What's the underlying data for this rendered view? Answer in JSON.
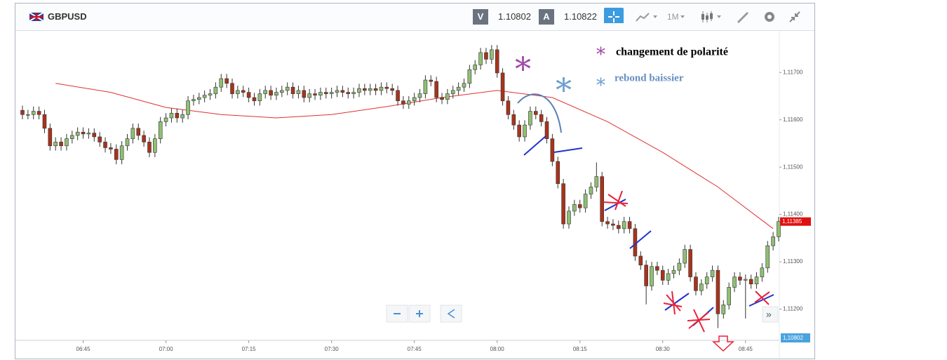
{
  "toolbar": {
    "symbol": "GBPUSD",
    "sell_label": "V",
    "sell_price": 1.10802,
    "buy_label": "A",
    "buy_price": 1.10822,
    "timeframe": "1M"
  },
  "legend": {
    "polarity": "changement de polarité",
    "rebound": "rebond baissier"
  },
  "bid_marker_label": "1,10802",
  "chart_data": {
    "type": "candlestick",
    "xlim": [
      "06:34",
      "08:51"
    ],
    "xticks": [
      "06:45",
      "07:00",
      "07:15",
      "07:30",
      "07:45",
      "08:00",
      "08:15",
      "08:30",
      "08:45"
    ],
    "ylim": [
      1.11134,
      1.11776
    ],
    "yticks": [
      {
        "value": 1.112,
        "label": "1,11200"
      },
      {
        "value": 1.113,
        "label": "1,11300"
      },
      {
        "value": 1.114,
        "label": "1,11400"
      },
      {
        "value": 1.115,
        "label": "1,11500"
      },
      {
        "value": 1.116,
        "label": "1,11600"
      },
      {
        "value": 1.117,
        "label": "1,11700"
      }
    ],
    "up_color": "#8fbf74",
    "down_color": "#a8331c",
    "price_marker": {
      "value": 1.11385,
      "label": "1,11385"
    },
    "x": [
      "06:34",
      "06:35",
      "06:36",
      "06:37",
      "06:38",
      "06:39",
      "06:40",
      "06:41",
      "06:42",
      "06:43",
      "06:44",
      "06:45",
      "06:46",
      "06:47",
      "06:48",
      "06:49",
      "06:50",
      "06:51",
      "06:52",
      "06:53",
      "06:54",
      "06:55",
      "06:56",
      "06:57",
      "06:58",
      "06:59",
      "07:00",
      "07:01",
      "07:02",
      "07:03",
      "07:04",
      "07:05",
      "07:06",
      "07:07",
      "07:08",
      "07:09",
      "07:10",
      "07:11",
      "07:12",
      "07:13",
      "07:14",
      "07:15",
      "07:16",
      "07:17",
      "07:18",
      "07:19",
      "07:20",
      "07:21",
      "07:22",
      "07:23",
      "07:24",
      "07:25",
      "07:26",
      "07:27",
      "07:28",
      "07:29",
      "07:30",
      "07:31",
      "07:32",
      "07:33",
      "07:34",
      "07:35",
      "07:36",
      "07:37",
      "07:38",
      "07:39",
      "07:40",
      "07:41",
      "07:42",
      "07:43",
      "07:44",
      "07:45",
      "07:46",
      "07:47",
      "07:48",
      "07:49",
      "07:50",
      "07:51",
      "07:52",
      "07:53",
      "07:54",
      "07:55",
      "07:56",
      "07:57",
      "07:58",
      "07:59",
      "08:00",
      "08:01",
      "08:02",
      "08:03",
      "08:04",
      "08:05",
      "08:06",
      "08:07",
      "08:08",
      "08:09",
      "08:10",
      "08:11",
      "08:12",
      "08:13",
      "08:14",
      "08:15",
      "08:16",
      "08:17",
      "08:18",
      "08:19",
      "08:20",
      "08:21",
      "08:22",
      "08:23",
      "08:24",
      "08:25",
      "08:26",
      "08:27",
      "08:28",
      "08:29",
      "08:30",
      "08:31",
      "08:32",
      "08:33",
      "08:34",
      "08:35",
      "08:36",
      "08:37",
      "08:38",
      "08:39",
      "08:40",
      "08:41",
      "08:42",
      "08:43",
      "08:44",
      "08:45",
      "08:46",
      "08:47",
      "08:48",
      "08:49",
      "08:50",
      "08:51"
    ],
    "open": [
      1.1162,
      1.11611,
      1.11611,
      1.11618,
      1.11611,
      1.11582,
      1.11545,
      1.11553,
      1.11545,
      1.1156,
      1.11567,
      1.11574,
      1.1157,
      1.11572,
      1.11564,
      1.11553,
      1.11541,
      1.11538,
      1.11516,
      1.11545,
      1.1156,
      1.11582,
      1.11567,
      1.11553,
      1.11531,
      1.1156,
      1.11596,
      1.11604,
      1.11614,
      1.11604,
      1.11611,
      1.1164,
      1.11643,
      1.11647,
      1.11652,
      1.11655,
      1.11669,
      1.11687,
      1.11677,
      1.11655,
      1.11662,
      1.11658,
      1.11647,
      1.1164,
      1.11655,
      1.11662,
      1.11652,
      1.11658,
      1.11662,
      1.11669,
      1.11655,
      1.11662,
      1.11647,
      1.11655,
      1.11652,
      1.11658,
      1.11655,
      1.11658,
      1.11662,
      1.11658,
      1.11655,
      1.11658,
      1.11666,
      1.11662,
      1.11666,
      1.11662,
      1.11669,
      1.11666,
      1.11662,
      1.1164,
      1.11633,
      1.1164,
      1.11647,
      1.11655,
      1.11684,
      1.11681,
      1.11647,
      1.11643,
      1.11655,
      1.11662,
      1.11669,
      1.11677,
      1.11706,
      1.11716,
      1.11742,
      1.11728,
      1.11748,
      1.11699,
      1.1164,
      1.11611,
      1.11589,
      1.11564,
      1.11589,
      1.11618,
      1.11611,
      1.11596,
      1.1156,
      1.11512,
      1.11465,
      1.1138,
      1.11407,
      1.11421,
      1.11414,
      1.11443,
      1.11458,
      1.1148,
      1.11385,
      1.1138,
      1.11377,
      1.1137,
      1.11385,
      1.1137,
      1.11312,
      1.11293,
      1.11249,
      1.1129,
      1.11282,
      1.11261,
      1.11275,
      1.11282,
      1.11297,
      1.11326,
      1.11268,
      1.11239,
      1.11253,
      1.11268,
      1.11282,
      1.1119,
      1.11209,
      1.11246,
      1.11268,
      1.11261,
      1.11263,
      1.11253,
      1.11268,
      1.11287,
      1.11334,
      1.11353
    ],
    "high": [
      1.1163,
      1.11621,
      1.11628,
      1.11628,
      1.11621,
      1.11592,
      1.11563,
      1.11563,
      1.1157,
      1.11577,
      1.11584,
      1.11584,
      1.11582,
      1.11582,
      1.11574,
      1.11563,
      1.11551,
      1.11548,
      1.11555,
      1.1157,
      1.11592,
      1.11592,
      1.11577,
      1.11563,
      1.1157,
      1.11606,
      1.11614,
      1.11624,
      1.11624,
      1.11621,
      1.1165,
      1.11653,
      1.11657,
      1.11662,
      1.11665,
      1.11679,
      1.11697,
      1.11697,
      1.11687,
      1.11672,
      1.11672,
      1.11668,
      1.11657,
      1.11665,
      1.11672,
      1.11672,
      1.11668,
      1.11672,
      1.11679,
      1.11679,
      1.11672,
      1.11672,
      1.11665,
      1.11665,
      1.11668,
      1.11668,
      1.11668,
      1.11672,
      1.11672,
      1.11668,
      1.11668,
      1.11676,
      1.11676,
      1.11676,
      1.11676,
      1.11679,
      1.11679,
      1.11676,
      1.11672,
      1.1165,
      1.1165,
      1.11657,
      1.11665,
      1.11694,
      1.11694,
      1.11691,
      1.11657,
      1.11665,
      1.11672,
      1.11679,
      1.11687,
      1.11716,
      1.11726,
      1.11752,
      1.11752,
      1.11758,
      1.11758,
      1.11709,
      1.1165,
      1.11621,
      1.11599,
      1.11599,
      1.11628,
      1.11628,
      1.11621,
      1.11606,
      1.1157,
      1.11522,
      1.11475,
      1.11417,
      1.11431,
      1.11431,
      1.11453,
      1.11468,
      1.1151,
      1.1149,
      1.11395,
      1.1139,
      1.11387,
      1.11395,
      1.11395,
      1.1138,
      1.11322,
      1.11303,
      1.113,
      1.113,
      1.11292,
      1.11285,
      1.11292,
      1.11307,
      1.11336,
      1.11336,
      1.11278,
      1.11263,
      1.11278,
      1.11292,
      1.11292,
      1.11219,
      1.11256,
      1.11278,
      1.11278,
      1.11273,
      1.11273,
      1.11278,
      1.11297,
      1.11344,
      1.11363,
      1.11395
    ],
    "low": [
      1.11601,
      1.11601,
      1.11601,
      1.11601,
      1.11572,
      1.11535,
      1.11535,
      1.11535,
      1.11535,
      1.1155,
      1.11557,
      1.1156,
      1.1156,
      1.11554,
      1.11543,
      1.11531,
      1.11528,
      1.11506,
      1.11506,
      1.11535,
      1.1155,
      1.11557,
      1.11543,
      1.11521,
      1.11521,
      1.1155,
      1.11586,
      1.11594,
      1.11594,
      1.11594,
      1.11601,
      1.1163,
      1.11633,
      1.11637,
      1.11642,
      1.11645,
      1.11659,
      1.11667,
      1.11645,
      1.11645,
      1.11648,
      1.11637,
      1.1163,
      1.1163,
      1.11645,
      1.11642,
      1.11642,
      1.11648,
      1.11652,
      1.11645,
      1.11645,
      1.11637,
      1.11637,
      1.11642,
      1.11642,
      1.11645,
      1.11645,
      1.11648,
      1.11648,
      1.11645,
      1.11645,
      1.11648,
      1.11652,
      1.11652,
      1.11652,
      1.11652,
      1.11656,
      1.11652,
      1.1163,
      1.11623,
      1.11623,
      1.1163,
      1.11637,
      1.11645,
      1.11671,
      1.11637,
      1.11633,
      1.11633,
      1.11645,
      1.11652,
      1.11659,
      1.11667,
      1.11696,
      1.11706,
      1.11718,
      1.11718,
      1.11689,
      1.1163,
      1.11601,
      1.11579,
      1.11554,
      1.11554,
      1.11579,
      1.11601,
      1.11586,
      1.1155,
      1.11502,
      1.11455,
      1.1137,
      1.1137,
      1.11397,
      1.11404,
      1.11404,
      1.11433,
      1.11448,
      1.11375,
      1.1137,
      1.11367,
      1.1136,
      1.1136,
      1.1136,
      1.11302,
      1.11283,
      1.1121,
      1.11239,
      1.11272,
      1.11251,
      1.11251,
      1.11265,
      1.11272,
      1.11287,
      1.11258,
      1.11229,
      1.11229,
      1.11243,
      1.11258,
      1.1116,
      1.1118,
      1.11199,
      1.11236,
      1.11251,
      1.1118,
      1.11243,
      1.11243,
      1.11258,
      1.11277,
      1.11324,
      1.11343
    ],
    "close": [
      1.11611,
      1.11611,
      1.11618,
      1.11611,
      1.11582,
      1.11545,
      1.11553,
      1.11545,
      1.1156,
      1.11567,
      1.11574,
      1.1157,
      1.11572,
      1.11564,
      1.11553,
      1.11541,
      1.11538,
      1.11516,
      1.11545,
      1.1156,
      1.11582,
      1.11567,
      1.11553,
      1.11531,
      1.1156,
      1.11596,
      1.11604,
      1.11614,
      1.11604,
      1.11611,
      1.1164,
      1.11643,
      1.11647,
      1.11652,
      1.11655,
      1.11669,
      1.11687,
      1.11677,
      1.11655,
      1.11662,
      1.11658,
      1.11647,
      1.1164,
      1.11655,
      1.11662,
      1.11652,
      1.11658,
      1.11662,
      1.11669,
      1.11655,
      1.11662,
      1.11647,
      1.11655,
      1.11652,
      1.11658,
      1.11655,
      1.11658,
      1.11662,
      1.11658,
      1.11655,
      1.11658,
      1.11666,
      1.11662,
      1.11666,
      1.11662,
      1.11669,
      1.11666,
      1.11662,
      1.1164,
      1.11633,
      1.1164,
      1.11647,
      1.11655,
      1.11684,
      1.11681,
      1.11647,
      1.11643,
      1.11655,
      1.11662,
      1.11669,
      1.11677,
      1.11706,
      1.11716,
      1.11742,
      1.11728,
      1.11748,
      1.11699,
      1.1164,
      1.11611,
      1.11589,
      1.11564,
      1.11589,
      1.11618,
      1.11611,
      1.11596,
      1.1156,
      1.11512,
      1.11465,
      1.1138,
      1.11407,
      1.11421,
      1.11414,
      1.11443,
      1.11458,
      1.1148,
      1.11385,
      1.1138,
      1.11377,
      1.1137,
      1.11385,
      1.1137,
      1.11312,
      1.11293,
      1.11249,
      1.1129,
      1.11282,
      1.11261,
      1.11275,
      1.11282,
      1.11297,
      1.11326,
      1.11268,
      1.11239,
      1.11253,
      1.11268,
      1.11282,
      1.1119,
      1.11209,
      1.11246,
      1.11268,
      1.11261,
      1.11263,
      1.11253,
      1.11268,
      1.11287,
      1.11334,
      1.11353,
      1.11385
    ],
    "ma": {
      "color": "#e03030",
      "x": [
        "06:40",
        "06:50",
        "07:00",
        "07:10",
        "07:20",
        "07:30",
        "07:40",
        "07:50",
        "08:00",
        "08:10",
        "08:20",
        "08:30",
        "08:40",
        "08:50"
      ],
      "values": [
        1.11677,
        1.11658,
        1.11626,
        1.11611,
        1.11604,
        1.11611,
        1.11628,
        1.11647,
        1.11662,
        1.11647,
        1.11596,
        1.11531,
        1.11458,
        1.1137
      ]
    }
  }
}
